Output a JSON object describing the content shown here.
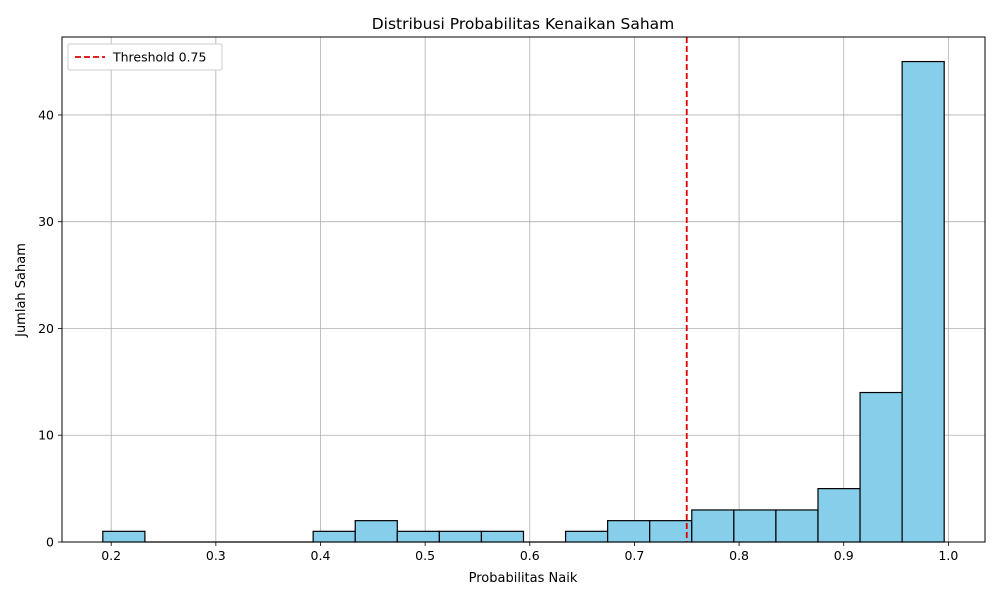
{
  "chart_data": {
    "type": "bar",
    "title": "Distribusi Probabilitas Kenaikan Saham",
    "xlabel": "Probabilitas Naik",
    "ylabel": "Jumlah Saham",
    "xlim": [
      0.153,
      1.035
    ],
    "ylim": [
      0,
      47.3
    ],
    "xticks": [
      0.2,
      0.3,
      0.4,
      0.5,
      0.6,
      0.7,
      0.8,
      0.9,
      1.0
    ],
    "xtick_labels": [
      "0.2",
      "0.3",
      "0.4",
      "0.5",
      "0.6",
      "0.7",
      "0.8",
      "0.9",
      "1.0"
    ],
    "yticks": [
      0,
      10,
      20,
      30,
      40
    ],
    "ytick_labels": [
      "0",
      "10",
      "20",
      "30",
      "40"
    ],
    "grid": true,
    "bin_edges": [
      0.192,
      0.2322,
      0.2724,
      0.3126,
      0.3528,
      0.393,
      0.4332,
      0.4734,
      0.5136,
      0.5538,
      0.594,
      0.6342,
      0.6744,
      0.7146,
      0.7548,
      0.795,
      0.8352,
      0.8754,
      0.9156,
      0.9558,
      0.996
    ],
    "counts": [
      1,
      0,
      0,
      0,
      0,
      1,
      2,
      1,
      1,
      1,
      0,
      1,
      2,
      2,
      3,
      3,
      3,
      5,
      14,
      45
    ],
    "bar_color": "#87CEEB",
    "edge_color": "#000000",
    "threshold": {
      "value": 0.75,
      "label": "Threshold 0.75",
      "color": "#e00000",
      "style": "dashed"
    },
    "legend_position": "upper-left"
  }
}
